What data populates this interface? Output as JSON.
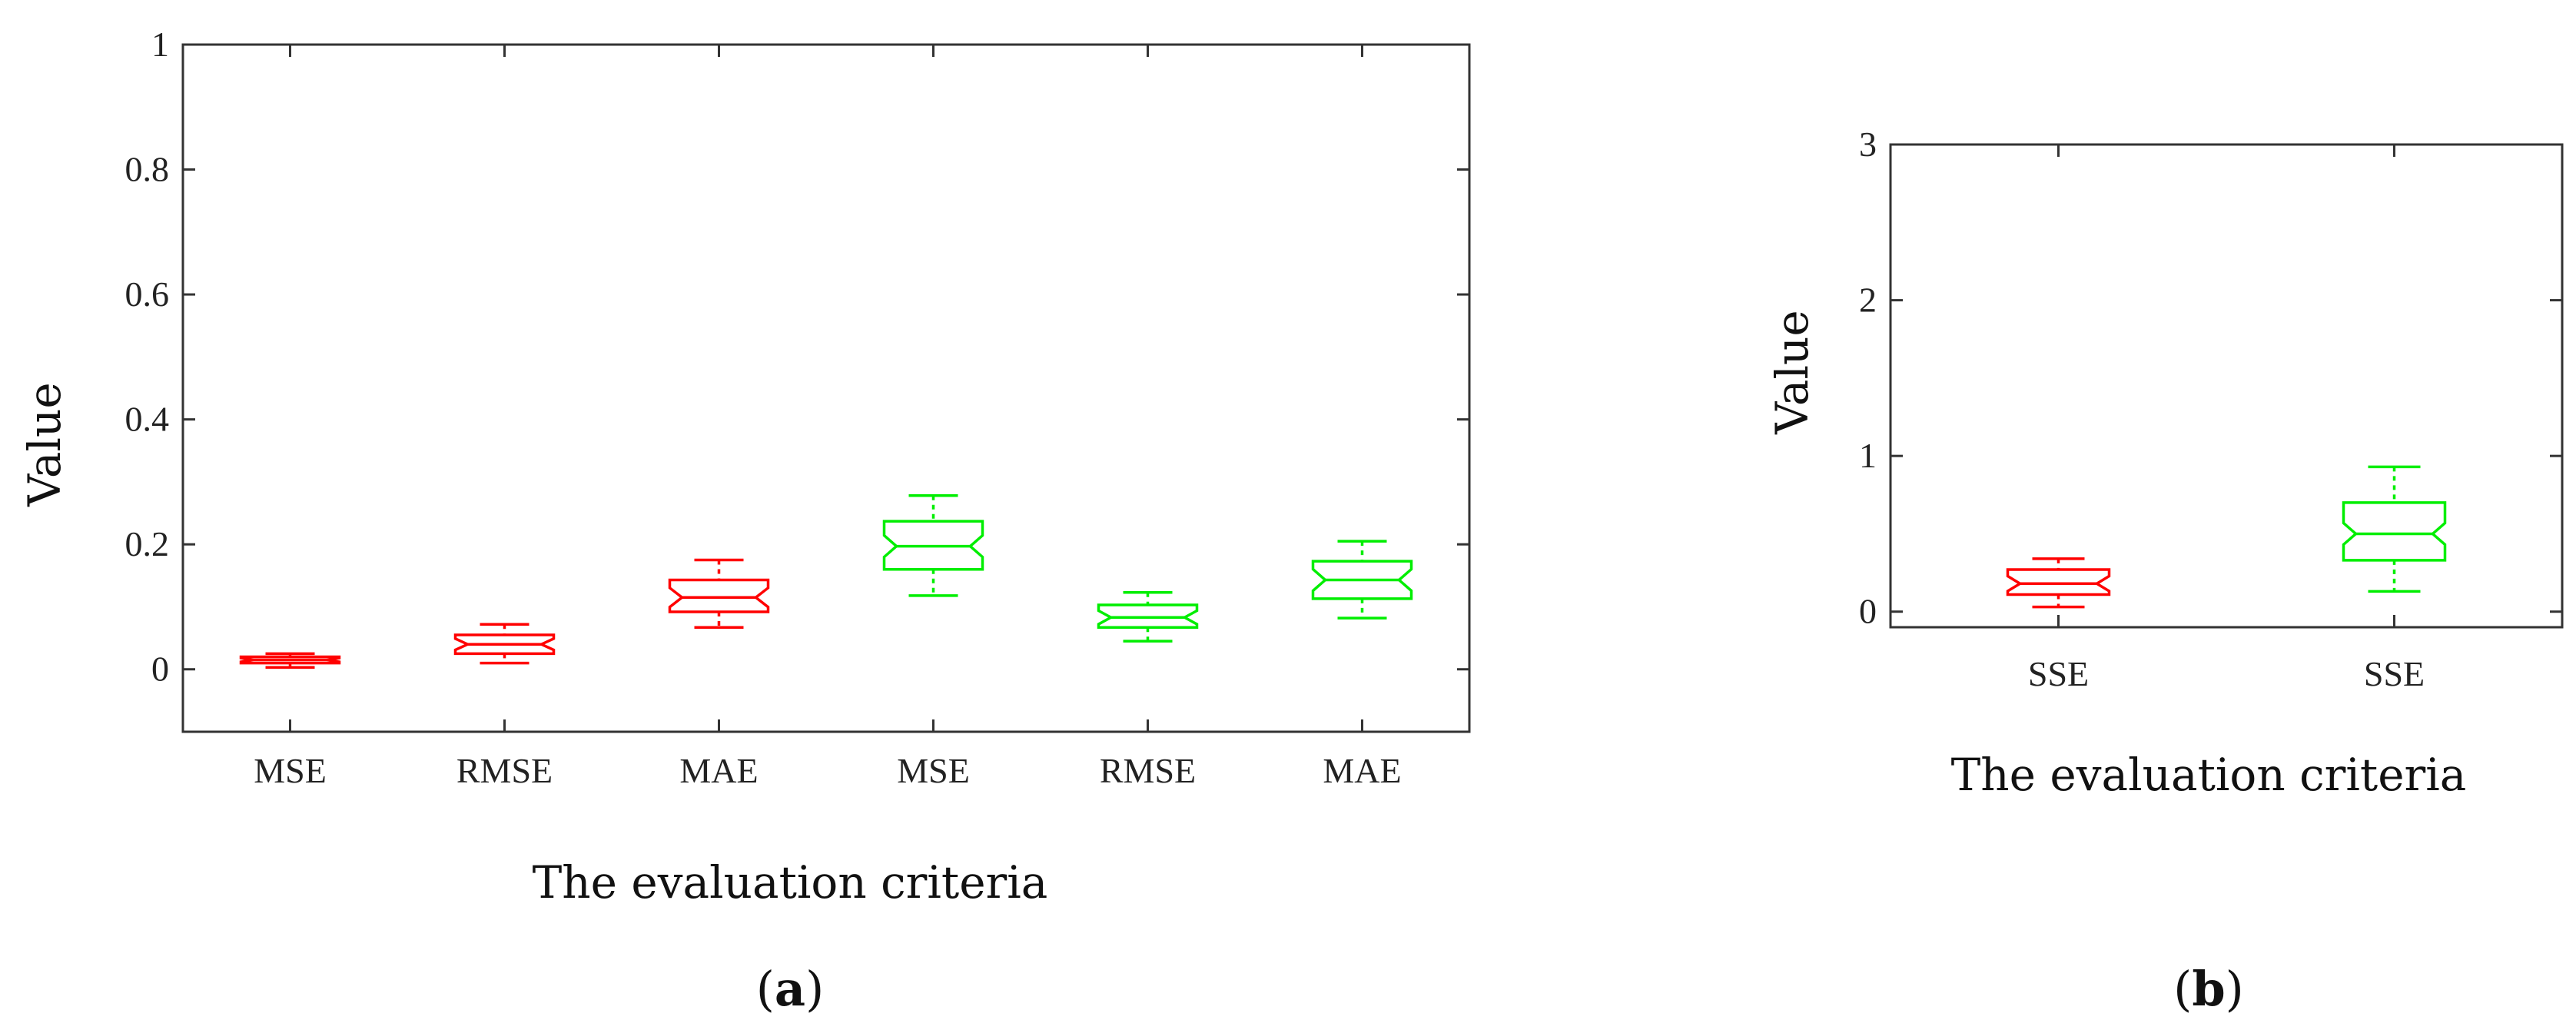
{
  "chart_data": [
    {
      "panel_label": "a",
      "type": "box",
      "xlabel": "The evaluation criteria",
      "ylabel": "Value",
      "ylim": [
        -0.1,
        1
      ],
      "yticks": [
        0,
        0.2,
        0.4,
        0.6,
        0.8,
        1
      ],
      "ytick_labels": [
        "0",
        "0.2",
        "0.4",
        "0.6",
        "0.8",
        "1"
      ],
      "categories": [
        "MSE",
        "RMSE",
        "MAE",
        "MSE",
        "RMSE",
        "MAE"
      ],
      "box_colors": [
        "#ff0000",
        "#ff0000",
        "#ff0000",
        "#00ee00",
        "#00ee00",
        "#00ee00"
      ],
      "boxes": [
        {
          "whisker_low": 0.003,
          "q1": 0.01,
          "median": 0.015,
          "q3": 0.02,
          "whisker_high": 0.025
        },
        {
          "whisker_low": 0.01,
          "q1": 0.025,
          "median": 0.04,
          "q3": 0.055,
          "whisker_high": 0.072
        },
        {
          "whisker_low": 0.067,
          "q1": 0.092,
          "median": 0.115,
          "q3": 0.143,
          "whisker_high": 0.175
        },
        {
          "whisker_low": 0.118,
          "q1": 0.16,
          "median": 0.197,
          "q3": 0.237,
          "whisker_high": 0.278
        },
        {
          "whisker_low": 0.045,
          "q1": 0.067,
          "median": 0.083,
          "q3": 0.103,
          "whisker_high": 0.123
        },
        {
          "whisker_low": 0.082,
          "q1": 0.113,
          "median": 0.143,
          "q3": 0.173,
          "whisker_high": 0.205
        }
      ]
    },
    {
      "panel_label": "b",
      "type": "box",
      "xlabel": "The evaluation criteria",
      "ylabel": "Value",
      "ylim": [
        -0.1,
        3
      ],
      "yticks": [
        0,
        1,
        2,
        3
      ],
      "ytick_labels": [
        "0",
        "1",
        "2",
        "3"
      ],
      "categories": [
        "SSE",
        "SSE"
      ],
      "box_colors": [
        "#ff0000",
        "#00ee00"
      ],
      "boxes": [
        {
          "whisker_low": 0.03,
          "q1": 0.11,
          "median": 0.18,
          "q3": 0.27,
          "whisker_high": 0.34
        },
        {
          "whisker_low": 0.13,
          "q1": 0.33,
          "median": 0.5,
          "q3": 0.7,
          "whisker_high": 0.93
        }
      ]
    }
  ]
}
